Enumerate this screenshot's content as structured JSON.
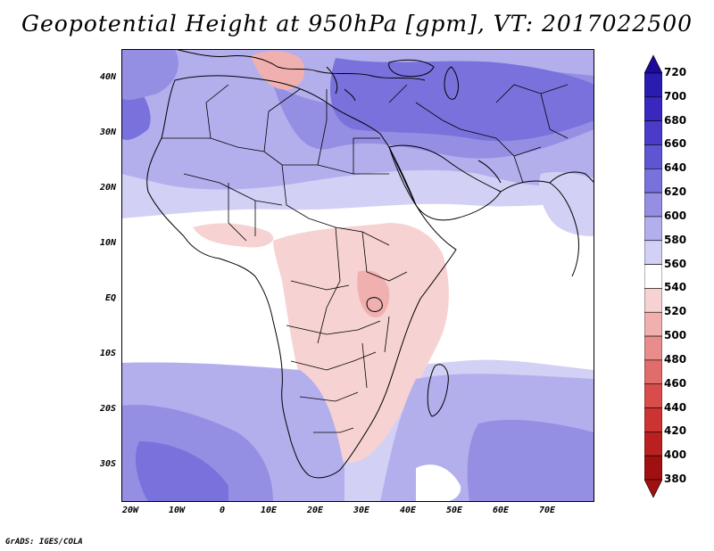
{
  "title": "Geopotential Height at 950hPa [gpm], VT: 2017022500",
  "credit": "GrADS: IGES/COLA",
  "map": {
    "projection": "latlon",
    "lon_range": [
      -24,
      80
    ],
    "lat_range": [
      -37,
      45
    ],
    "variable": "Geopotential Height",
    "level": "950hPa",
    "units": "gpm",
    "valid_time": "2017022500"
  },
  "axes": {
    "lat_labels": [
      "40N",
      "30N",
      "20N",
      "10N",
      "EQ",
      "10S",
      "20S",
      "30S"
    ],
    "lon_labels": [
      "20W",
      "10W",
      "0",
      "10E",
      "20E",
      "30E",
      "40E",
      "50E",
      "60E",
      "70E"
    ]
  },
  "colorbar": {
    "levels": [
      720,
      700,
      680,
      660,
      640,
      620,
      600,
      580,
      560,
      540,
      520,
      500,
      480,
      460,
      440,
      420,
      400,
      380
    ],
    "colors": [
      "#1d0a9a",
      "#2a1cb0",
      "#3828c0",
      "#4a3cc8",
      "#5f55d2",
      "#7a72dc",
      "#958fe4",
      "#b3afed",
      "#d2d0f5",
      "#ffffff",
      "#f7d2d2",
      "#f0b0b0",
      "#e88c8c",
      "#e06c6c",
      "#d84c4c",
      "#cc3434",
      "#bb2020",
      "#a01010"
    ]
  },
  "colors": {
    "ocean_south": "#7a72dc",
    "land_border": "#000000",
    "near_zero": "#ffffff"
  }
}
